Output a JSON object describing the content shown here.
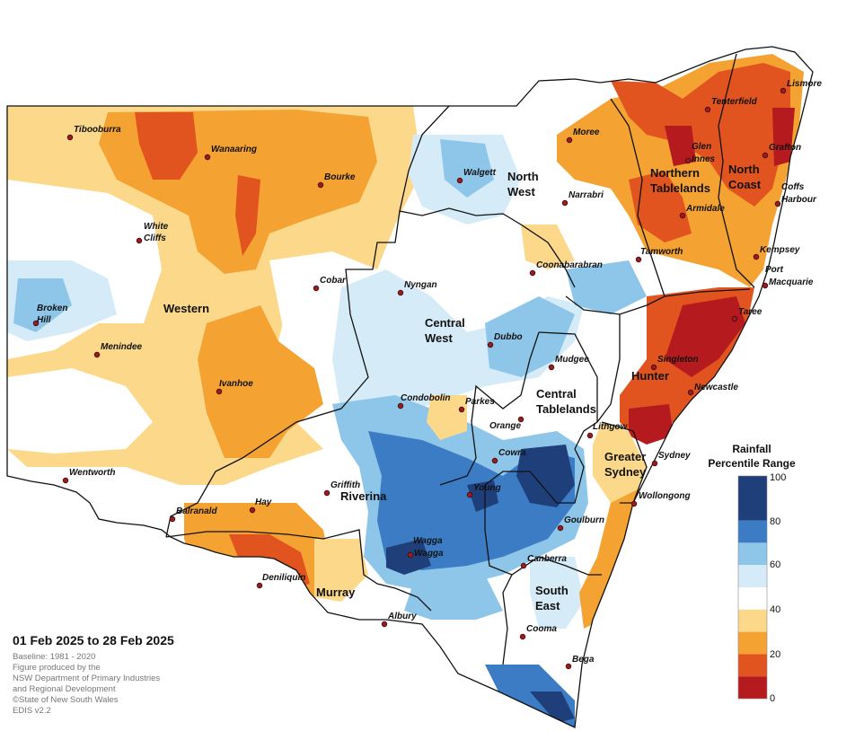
{
  "period": "01 Feb 2025 to 28 Feb 2025",
  "footer_lines": [
    "Baseline: 1981 - 2020",
    "Figure produced by the",
    "NSW Department of Primary Industries",
    "and Regional Development",
    "©State of New South Wales",
    "EDIS v2.2"
  ],
  "legend": {
    "title_line1": "Rainfall",
    "title_line2": "Percentile Range",
    "ticks": [
      "100",
      "80",
      "60",
      "40",
      "20",
      "0"
    ],
    "bands": [
      {
        "range": "80-100",
        "color": "#1f3f7a"
      },
      {
        "range": "70-80",
        "color": "#3b7cc4"
      },
      {
        "range": "60-70",
        "color": "#8ec6ea"
      },
      {
        "range": "50-60",
        "color": "#d5ebf7"
      },
      {
        "range": "40-50",
        "color": "#ffffff"
      },
      {
        "range": "30-40",
        "color": "#fcd98a"
      },
      {
        "range": "20-30",
        "color": "#f4a232"
      },
      {
        "range": "10-20",
        "color": "#e2541f"
      },
      {
        "range": "0-10",
        "color": "#b51a1f"
      }
    ]
  },
  "regions": {
    "western": "Western",
    "north_west": [
      "North",
      "West"
    ],
    "central_west": [
      "Central",
      "West"
    ],
    "northern_tablelands": [
      "Northern",
      "Tablelands"
    ],
    "north_coast": [
      "North",
      "Coast"
    ],
    "hunter": "Hunter",
    "central_tablelands": [
      "Central",
      "Tablelands"
    ],
    "greater_sydney": [
      "Greater",
      "Sydney"
    ],
    "riverina": "Riverina",
    "murray": "Murray",
    "south_east": [
      "South",
      "East"
    ]
  },
  "towns": {
    "tibooburra": "Tibooburra",
    "wanaaring": "Wanaaring",
    "bourke": "Bourke",
    "white_cliffs": [
      "White",
      "Cliffs"
    ],
    "cobar": "Cobar",
    "broken_hill": [
      "Broken",
      "Hill"
    ],
    "menindee": "Menindee",
    "ivanhoe": "Ivanhoe",
    "wentworth": "Wentworth",
    "balranald": "Balranald",
    "hay": "Hay",
    "griffith": "Griffith",
    "deniliquin": "Deniliquin",
    "albury": "Albury",
    "wagga_1": "Wagga",
    "wagga_2": "Wagga",
    "young": "Young",
    "cowra": "Cowra",
    "canberra": "Canberra",
    "cooma": "Cooma",
    "bega": "Bega",
    "goulburn": "Goulburn",
    "wollongong": "Wollongong",
    "sydney": "Sydney",
    "lithgow": "Lithgow",
    "orange": "Orange",
    "parkes": "Parkes",
    "condobolin": "Condobolin",
    "dubbo": "Dubbo",
    "mudgee": "Mudgee",
    "nyngan": "Nyngan",
    "walgett": "Walgett",
    "moree": "Moree",
    "narrabri": "Narrabri",
    "coonabarabran": "Coonabarabran",
    "tamworth": "Tamworth",
    "armidale": "Armidale",
    "glen_innes": [
      "Glen",
      "Innes"
    ],
    "tenterfield": "Tenterfield",
    "lismore": "Lismore",
    "grafton": "Grafton",
    "coffs_harbour": [
      "Coffs",
      "Harbour"
    ],
    "kempsey": "Kempsey",
    "port_macquarie": [
      "Port",
      "Macquarie"
    ],
    "taree": "Taree",
    "singleton": "Singleton",
    "newcastle": "Newcastle"
  }
}
